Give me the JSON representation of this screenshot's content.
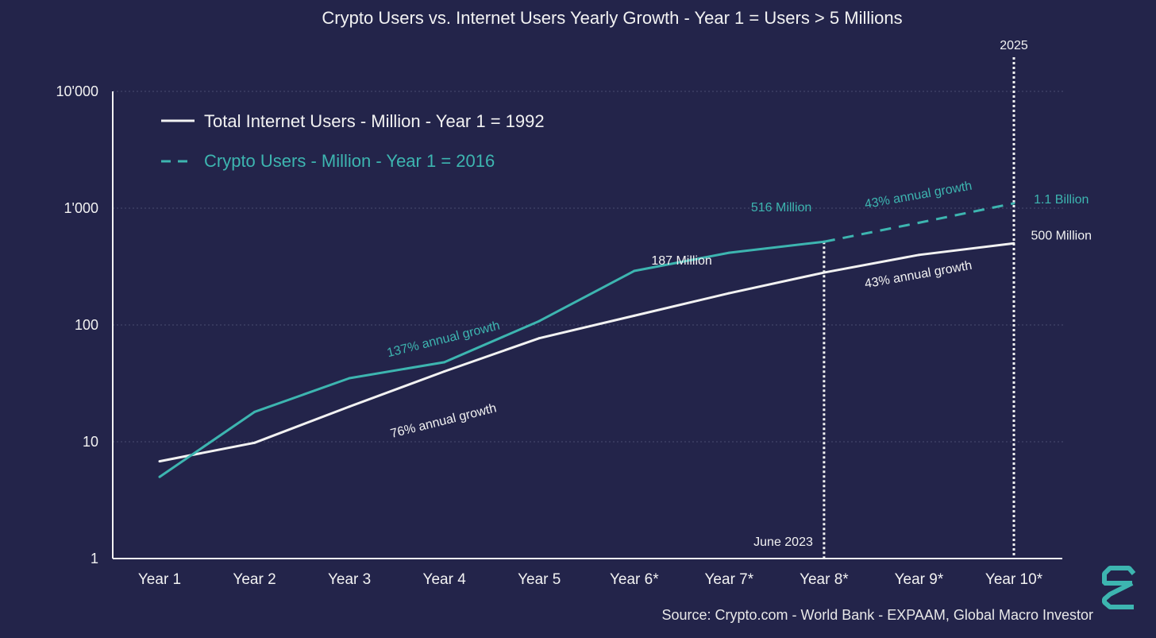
{
  "chart_data": {
    "type": "line",
    "title": "Crypto Users vs. Internet Users Yearly Growth - Year 1 = Users > 5 Millions",
    "yscale": "log",
    "ylim": [
      1,
      10000
    ],
    "yticks": [
      {
        "value": 1,
        "label": "1"
      },
      {
        "value": 10,
        "label": "10"
      },
      {
        "value": 100,
        "label": "100"
      },
      {
        "value": 1000,
        "label": "1'000"
      },
      {
        "value": 10000,
        "label": "10'000"
      }
    ],
    "grid": true,
    "categories": [
      "Year 1",
      "Year 2",
      "Year 3",
      "Year 4",
      "Year 5",
      "Year 6*",
      "Year 7*",
      "Year 8*",
      "Year 9*",
      "Year 10*"
    ],
    "legend_position": "top-left",
    "series": [
      {
        "name": "Total Internet Users - Million - Year 1 = 1992",
        "color": "#f2f2f2",
        "style": "solid",
        "values": [
          6.8,
          9.8,
          20,
          40,
          77,
          120,
          187,
          281,
          398,
          500
        ]
      },
      {
        "name": "Crypto Users - Million - Year 1 = 2016",
        "color": "#3db5b0",
        "style": "solid",
        "values": [
          5,
          18,
          35,
          48,
          108,
          290,
          415,
          516,
          null,
          null
        ]
      },
      {
        "name": "Crypto Users projection",
        "color": "#3db5b0",
        "style": "dashed",
        "values": [
          null,
          null,
          null,
          null,
          null,
          null,
          null,
          516,
          750,
          1100
        ]
      }
    ],
    "vlines": [
      {
        "category_index": 7,
        "label": "June 2023",
        "label_position": "bottom"
      },
      {
        "category_index": 9,
        "label": "2025",
        "label_position": "top"
      }
    ],
    "annotations": [
      {
        "text": "137% annual growth",
        "color": "#3db5b0",
        "near": [
          3,
          70
        ],
        "angle": -14
      },
      {
        "text": "76% annual growth",
        "color": "#f2f2f2",
        "near": [
          3.0,
          14
        ],
        "angle": -14
      },
      {
        "text": "187 Million",
        "color": "#f2f2f2",
        "near": [
          5.5,
          330
        ],
        "angle": 0
      },
      {
        "text": "516 Million",
        "color": "#3db5b0",
        "near": [
          6.55,
          940
        ],
        "angle": 0
      },
      {
        "text": "43% annual growth",
        "color": "#3db5b0",
        "near": [
          8.0,
          1200
        ],
        "angle": -10
      },
      {
        "text": "43% annual growth",
        "color": "#f2f2f2",
        "near": [
          8.0,
          250
        ],
        "angle": -10
      },
      {
        "text": "1.1 Billion",
        "color": "#3db5b0",
        "near": [
          9.5,
          1100
        ],
        "angle": 0
      },
      {
        "text": "500 Million",
        "color": "#f2f2f2",
        "near": [
          9.5,
          540
        ],
        "angle": 0
      }
    ],
    "source": "Source: Crypto.com - World Bank - EXPAAM, Global Macro Investor"
  },
  "colors": {
    "background": "#23244a",
    "teal": "#3db5b0",
    "white": "#f2f2f2"
  }
}
